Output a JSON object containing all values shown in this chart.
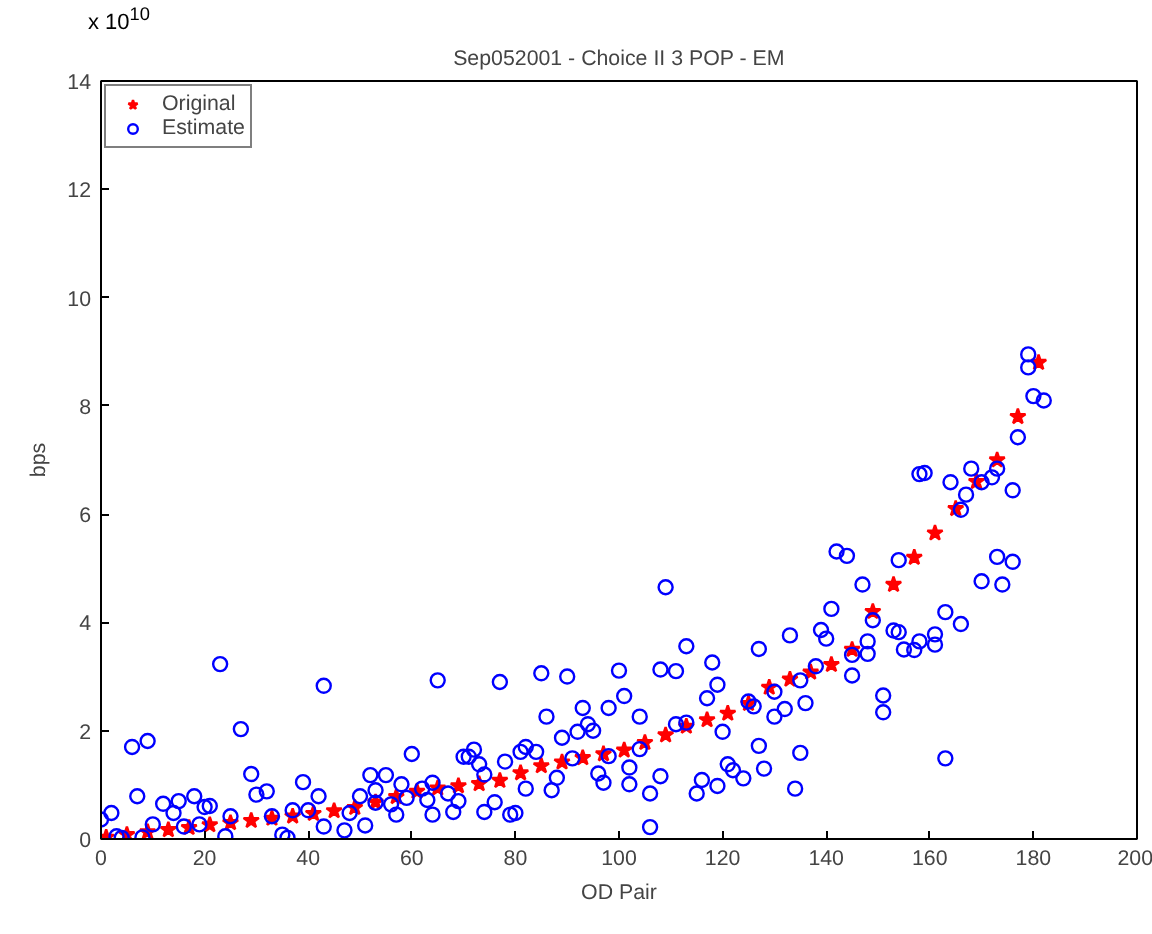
{
  "chart_data": {
    "type": "scatter",
    "title": "Sep052001 - Choice II 3 POP - EM",
    "xlabel": "OD Pair",
    "ylabel": "bps",
    "annotations": [
      "x 10$^{10}$"
    ],
    "xlim": [
      0,
      200
    ],
    "xticks": [
      0,
      20,
      40,
      60,
      80,
      100,
      120,
      140,
      160,
      180,
      200
    ],
    "ylim": [
      0,
      14
    ],
    "yticks": [
      0,
      2,
      4,
      6,
      8,
      10,
      12,
      14
    ],
    "grid": false,
    "legend": "top left",
    "series": [
      {
        "name": "Original",
        "color": "#ff0000",
        "marker": "star",
        "x": [
          1,
          5,
          9,
          13,
          17,
          21,
          25,
          29,
          33,
          37,
          41,
          45,
          49,
          53,
          57,
          61,
          65,
          69,
          73,
          77,
          81,
          85,
          89,
          93,
          97,
          101,
          105,
          109,
          113,
          117,
          121,
          125,
          129,
          133,
          137,
          141,
          145,
          149,
          153,
          157,
          161,
          165,
          169,
          173,
          177,
          181
        ],
        "values": [
          0.03,
          0.08,
          0.13,
          0.17,
          0.21,
          0.26,
          0.3,
          0.34,
          0.38,
          0.42,
          0.47,
          0.52,
          0.58,
          0.68,
          0.78,
          0.88,
          0.94,
          0.98,
          1.02,
          1.08,
          1.22,
          1.35,
          1.42,
          1.5,
          1.57,
          1.64,
          1.78,
          1.92,
          2.08,
          2.2,
          2.32,
          2.5,
          2.8,
          2.95,
          3.08,
          3.22,
          3.5,
          4.2,
          4.7,
          5.2,
          5.65,
          6.1,
          6.6,
          7.0,
          7.8,
          8.8
        ]
      },
      {
        "name": "Estimate",
        "color": "#0000ff",
        "marker": "circle",
        "x": [
          0,
          2,
          3,
          4,
          6,
          7,
          8,
          9,
          10,
          12,
          14,
          15,
          16,
          18,
          19,
          20,
          21,
          23,
          24,
          25,
          27,
          29,
          30,
          32,
          33,
          35,
          36,
          37,
          39,
          40,
          42,
          43,
          43,
          47,
          48,
          50,
          51,
          52,
          53,
          53,
          55,
          56,
          57,
          58,
          59,
          60,
          62,
          63,
          64,
          64,
          65,
          67,
          68,
          69,
          70,
          71,
          72,
          73,
          74,
          74,
          76,
          77,
          78,
          79,
          80,
          81,
          82,
          82,
          84,
          85,
          86,
          87,
          88,
          89,
          90,
          91,
          92,
          93,
          94,
          95,
          96,
          97,
          98,
          98,
          100,
          101,
          102,
          102,
          104,
          104,
          106,
          106,
          108,
          108,
          109,
          111,
          111,
          113,
          113,
          115,
          116,
          117,
          118,
          119,
          119,
          120,
          121,
          122,
          124,
          125,
          126,
          127,
          127,
          128,
          130,
          130,
          132,
          133,
          134,
          135,
          135,
          136,
          138,
          139,
          140,
          141,
          142,
          144,
          145,
          145,
          147,
          148,
          148,
          149,
          151,
          151,
          153,
          154,
          154,
          155,
          157,
          158,
          158,
          159,
          161,
          161,
          163,
          163,
          164,
          166,
          166,
          167,
          168,
          170,
          170,
          172,
          173,
          173,
          174,
          176,
          176,
          177,
          179,
          179,
          180,
          182
        ],
        "values": [
          0.36,
          0.48,
          0.05,
          0.02,
          1.7,
          0.79,
          0.03,
          1.81,
          0.27,
          0.65,
          0.48,
          0.7,
          0.23,
          0.79,
          0.27,
          0.59,
          0.61,
          3.23,
          0.05,
          0.42,
          2.03,
          1.2,
          0.82,
          0.88,
          0.42,
          0.08,
          0.02,
          0.53,
          1.05,
          0.53,
          0.79,
          0.23,
          2.83,
          0.16,
          0.48,
          0.79,
          0.25,
          1.18,
          0.9,
          0.67,
          1.18,
          0.64,
          0.45,
          1.01,
          0.76,
          1.57,
          0.93,
          0.72,
          0.45,
          1.04,
          2.93,
          0.84,
          0.5,
          0.7,
          1.52,
          1.52,
          1.65,
          1.38,
          1.19,
          0.5,
          0.68,
          2.9,
          1.43,
          0.45,
          0.48,
          1.61,
          0.93,
          1.7,
          1.61,
          3.06,
          2.26,
          0.9,
          1.13,
          1.87,
          3.0,
          1.49,
          1.98,
          2.42,
          2.12,
          2.0,
          1.21,
          1.04,
          1.53,
          2.42,
          3.11,
          2.64,
          1.32,
          1.01,
          2.26,
          1.66,
          0.22,
          0.84,
          3.13,
          1.16,
          4.65,
          3.1,
          2.12,
          2.15,
          3.56,
          0.84,
          1.09,
          2.6,
          3.26,
          2.85,
          0.98,
          1.98,
          1.38,
          1.27,
          1.12,
          2.54,
          2.45,
          3.51,
          1.72,
          1.3,
          2.26,
          2.72,
          2.4,
          3.76,
          0.93,
          1.59,
          2.93,
          2.51,
          3.19,
          3.86,
          3.7,
          4.25,
          5.31,
          5.23,
          3.02,
          3.4,
          4.7,
          3.42,
          3.65,
          4.04,
          2.65,
          2.34,
          3.85,
          3.82,
          5.15,
          3.5,
          3.49,
          6.74,
          3.65,
          6.76,
          3.59,
          3.78,
          4.19,
          1.49,
          6.59,
          3.97,
          6.08,
          6.36,
          6.84,
          4.76,
          6.59,
          6.68,
          6.84,
          5.21,
          4.7,
          5.12,
          6.44,
          7.42,
          8.71,
          8.95,
          8.18,
          8.1
        ]
      }
    ]
  }
}
